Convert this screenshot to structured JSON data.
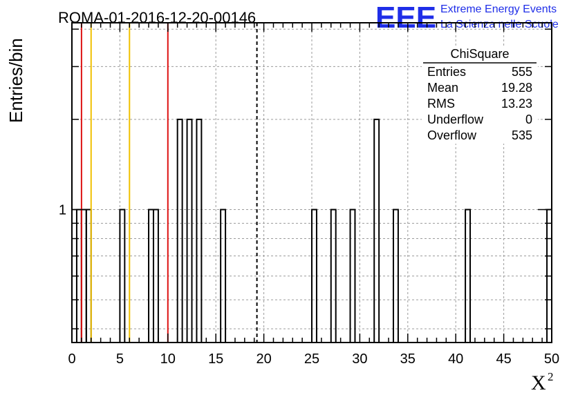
{
  "header": {
    "title": "ROMA-01-2016-12-20-00146",
    "logo_letters": "EEE",
    "logo_line1": "Extreme Energy Events",
    "logo_line2": "La Scienza nelle Scuole",
    "logo_color": "#1f2ee8"
  },
  "stats_box": {
    "name": "ChiSquare",
    "rows": [
      {
        "label": "Entries",
        "value": "555"
      },
      {
        "label": "Mean",
        "value": "19.28"
      },
      {
        "label": "RMS",
        "value": "13.23"
      },
      {
        "label": "Underflow",
        "value": "0"
      },
      {
        "label": "Overflow",
        "value": "535"
      }
    ]
  },
  "chart_data": {
    "type": "histogram",
    "title": "ROMA-01-2016-12-20-00146",
    "xlabel": "X",
    "xlabel_superscript": "2",
    "ylabel": "Entries/bin",
    "xlim": [
      0,
      50
    ],
    "ylim": [
      0.36,
      4.2
    ],
    "ylog": true,
    "grid": true,
    "bin_width": 0.5,
    "x_ticks": [
      0,
      5,
      10,
      15,
      20,
      25,
      30,
      35,
      40,
      45,
      50
    ],
    "y_tick_labels": [
      {
        "value": 1,
        "label": "1"
      }
    ],
    "bins": [
      {
        "x": 0.5,
        "count": 1
      },
      {
        "x": 1.0,
        "count": 1
      },
      {
        "x": 1.5,
        "count": 1
      },
      {
        "x": 5.0,
        "count": 1
      },
      {
        "x": 8.0,
        "count": 1
      },
      {
        "x": 8.5,
        "count": 1
      },
      {
        "x": 11.0,
        "count": 2
      },
      {
        "x": 12.0,
        "count": 2
      },
      {
        "x": 13.0,
        "count": 2
      },
      {
        "x": 15.5,
        "count": 1
      },
      {
        "x": 25.0,
        "count": 1
      },
      {
        "x": 27.0,
        "count": 1
      },
      {
        "x": 29.0,
        "count": 1
      },
      {
        "x": 31.5,
        "count": 2
      },
      {
        "x": 33.5,
        "count": 1
      },
      {
        "x": 41.0,
        "count": 1
      },
      {
        "x": 49.5,
        "count": 1
      }
    ],
    "reference_lines": [
      {
        "x": 1,
        "color": "#dd1111",
        "style": "solid"
      },
      {
        "x": 2,
        "color": "#f0c000",
        "style": "solid"
      },
      {
        "x": 6,
        "color": "#f0c000",
        "style": "solid"
      },
      {
        "x": 10,
        "color": "#dd1111",
        "style": "solid"
      },
      {
        "x": 19.28,
        "color": "#000000",
        "style": "dashed"
      }
    ]
  }
}
